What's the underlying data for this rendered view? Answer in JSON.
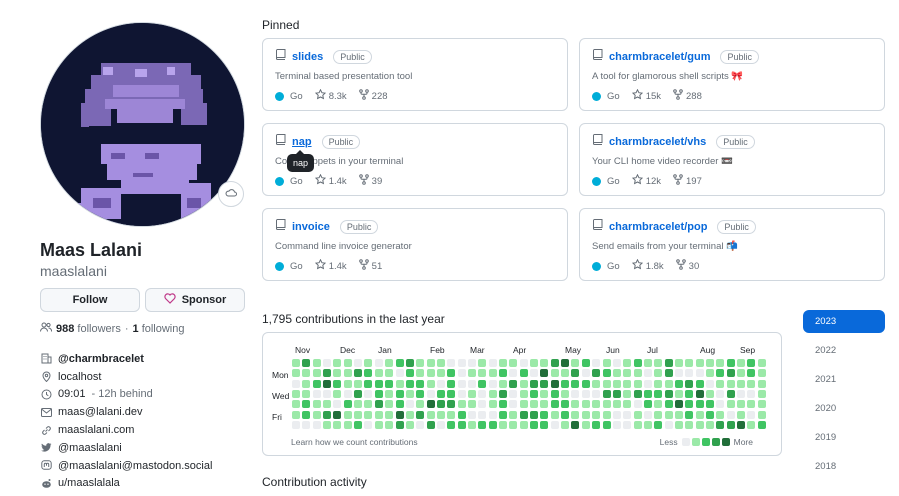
{
  "profile": {
    "name": "Maas Lalani",
    "login": "maaslalani",
    "follow_label": "Follow",
    "sponsor_label": "Sponsor",
    "followers_count": "988",
    "followers_label": "followers",
    "following_count": "1",
    "following_label": "following",
    "status_icon": "cloud-icon",
    "details": [
      {
        "icon": "organization-icon",
        "text": "@charmbracelet",
        "bold": true
      },
      {
        "icon": "location-icon",
        "text": "localhost"
      },
      {
        "icon": "clock-icon",
        "text": "09:01",
        "muted": " - 12h behind"
      },
      {
        "icon": "mail-icon",
        "text": "maas@lalani.dev"
      },
      {
        "icon": "link-icon",
        "text": "maaslalani.com"
      },
      {
        "icon": "twitter-icon",
        "text": "@maaslalani"
      },
      {
        "icon": "mastodon-icon",
        "text": "@maaslalani@mastodon.social"
      },
      {
        "icon": "reddit-icon",
        "text": "u/maaslalala"
      }
    ]
  },
  "pinned": {
    "title": "Pinned",
    "tooltip": "nap",
    "repos": [
      {
        "name": "slides",
        "visibility": "Public",
        "description": "Terminal based presentation tool",
        "language": "Go",
        "stars": "8.3k",
        "forks": "228"
      },
      {
        "name": "charmbracelet/gum",
        "visibility": "Public",
        "description": "A tool for glamorous shell scripts 🎀",
        "language": "Go",
        "stars": "15k",
        "forks": "288"
      },
      {
        "name": "nap",
        "visibility": "Public",
        "description": "Code snippets in your terminal",
        "language": "Go",
        "stars": "1.4k",
        "forks": "39"
      },
      {
        "name": "charmbracelet/vhs",
        "visibility": "Public",
        "description": "Your CLI home video recorder 📼",
        "language": "Go",
        "stars": "12k",
        "forks": "197"
      },
      {
        "name": "invoice",
        "visibility": "Public",
        "description": "Command line invoice generator",
        "language": "Go",
        "stars": "1.4k",
        "forks": "51"
      },
      {
        "name": "charmbracelet/pop",
        "visibility": "Public",
        "description": "Send emails from your terminal 📬",
        "language": "Go",
        "stars": "1.8k",
        "forks": "30"
      }
    ]
  },
  "contributions": {
    "title": "1,795 contributions in the last year",
    "months": [
      "Nov",
      "Dec",
      "Jan",
      "Feb",
      "Mar",
      "Apr",
      "May",
      "Jun",
      "Jul",
      "Aug",
      "Sep"
    ],
    "days": [
      "Mon",
      "Wed",
      "Fri"
    ],
    "learn_label": "Learn how we count contributions",
    "less_label": "Less",
    "more_label": "More",
    "level_colors": [
      "#ebedf0",
      "#9be9a8",
      "#40c463",
      "#30a14e",
      "#216e39"
    ]
  },
  "years": [
    "2023",
    "2022",
    "2021",
    "2020",
    "2019",
    "2018"
  ],
  "selected_year": "2023",
  "activity": {
    "title": "Contribution activity"
  },
  "colors": {
    "accent": "#0969da",
    "go": "#00add8",
    "heart": "#bf3989"
  }
}
